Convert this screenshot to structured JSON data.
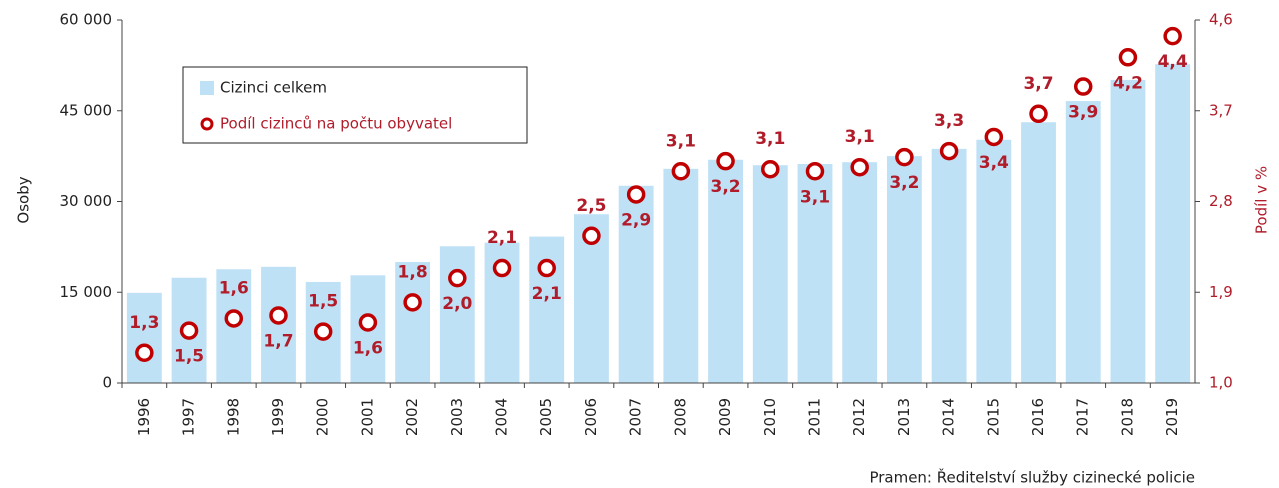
{
  "chart_data": {
    "type": "bar",
    "categories": [
      "1996",
      "1997",
      "1998",
      "1999",
      "2000",
      "2001",
      "2002",
      "2003",
      "2004",
      "2005",
      "2006",
      "2007",
      "2008",
      "2009",
      "2010",
      "2011",
      "2012",
      "2013",
      "2014",
      "2015",
      "2016",
      "2017",
      "2018",
      "2019"
    ],
    "series": [
      {
        "name": "Cizinci celkem",
        "type": "bar",
        "color": "#bfe1f6",
        "values": [
          14900,
          17400,
          18800,
          19200,
          16700,
          17800,
          20000,
          22600,
          23200,
          24200,
          27900,
          32600,
          35400,
          36900,
          36000,
          36200,
          36500,
          37500,
          38700,
          40200,
          43100,
          46600,
          50100,
          52700
        ]
      },
      {
        "name": "Podíl cizinců na počtu obyvatel",
        "type": "scatter",
        "axis": "y2",
        "color": "#c00000",
        "values": [
          1.3,
          1.52,
          1.64,
          1.67,
          1.51,
          1.6,
          1.8,
          2.04,
          2.14,
          2.14,
          2.46,
          2.87,
          3.1,
          3.2,
          3.12,
          3.1,
          3.14,
          3.24,
          3.3,
          3.44,
          3.67,
          3.94,
          4.23,
          4.44
        ],
        "value_labels": [
          "1,3",
          "1,5",
          "1,6",
          "1,7",
          "1,5",
          "1,6",
          "1,8",
          "2,0",
          "2,1",
          "2,1",
          "2,5",
          "2,9",
          "3,1",
          "3,2",
          "3,1",
          "3,1",
          "3,1",
          "3,2",
          "3,3",
          "3,4",
          "3,7",
          "3,9",
          "4,2",
          "4,4"
        ]
      }
    ],
    "ylabel": "Osoby",
    "y2label": "Podíl  v  %",
    "ylim": [
      0,
      60000
    ],
    "yticks": [
      {
        "value": 0,
        "label": "0"
      },
      {
        "value": 15000,
        "label": "15 000"
      },
      {
        "value": 30000,
        "label": "30 000"
      },
      {
        "value": 45000,
        "label": "45 000"
      },
      {
        "value": 60000,
        "label": "60 000"
      }
    ],
    "y2lim": [
      1.0,
      4.6
    ],
    "y2ticks": [
      {
        "value": 1.0,
        "label": "1,0"
      },
      {
        "value": 1.9,
        "label": "1,9"
      },
      {
        "value": 2.8,
        "label": "2,8"
      },
      {
        "value": 3.7,
        "label": "3,7"
      },
      {
        "value": 4.6,
        "label": "4,6"
      }
    ],
    "source": "Pramen: Ředitelství  služby cizinecké policie"
  }
}
